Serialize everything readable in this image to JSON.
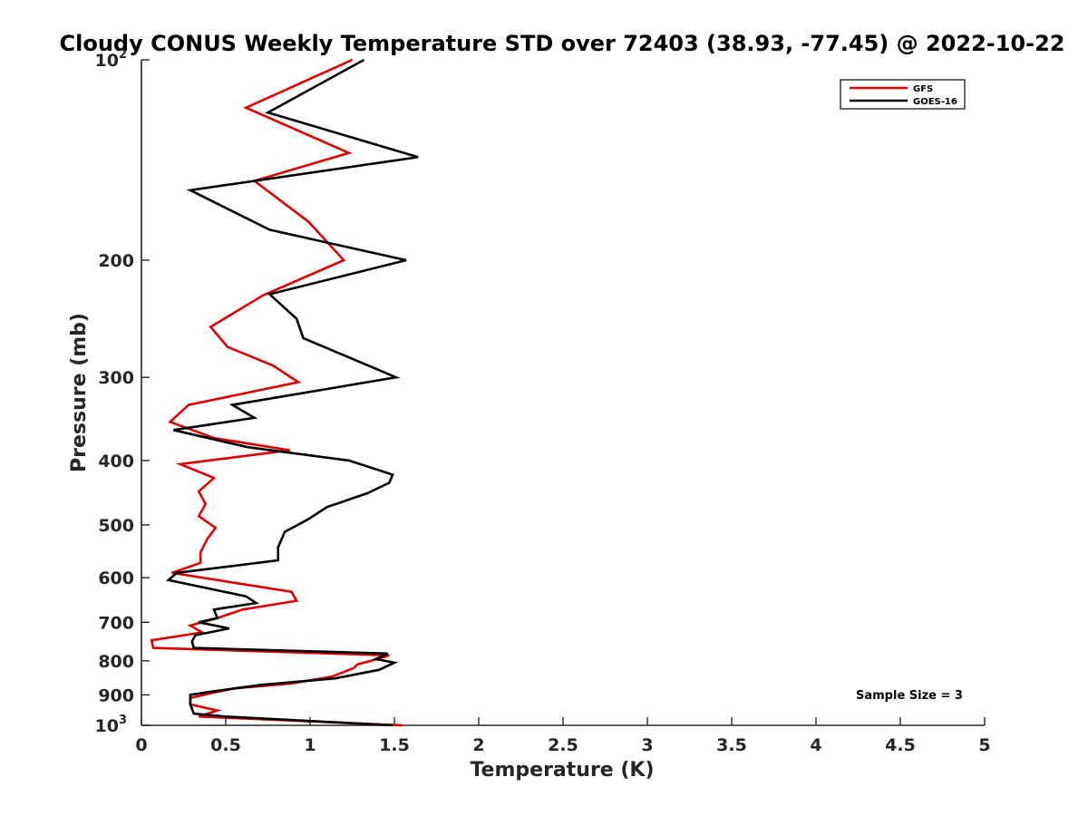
{
  "chart_data": {
    "type": "line",
    "title": "Cloudy CONUS Weekly Temperature STD over 72403 (38.93, -77.45) @ 2022-10-22",
    "xlabel": "Temperature (K)",
    "ylabel": "Pressure (mb)",
    "xlim": [
      0,
      5
    ],
    "ylim": [
      100,
      1000
    ],
    "y_scale": "log",
    "y_reversed": true,
    "x_ticks": [
      "0",
      "0.5",
      "1",
      "1.5",
      "2",
      "2.5",
      "3",
      "3.5",
      "4",
      "4.5",
      "5"
    ],
    "x_tick_values": [
      0,
      0.5,
      1,
      1.5,
      2,
      2.5,
      3,
      3.5,
      4,
      4.5,
      5
    ],
    "y_ticks": [
      {
        "value": 100,
        "base": "10",
        "exp": "2"
      },
      {
        "value": 200,
        "label": "200"
      },
      {
        "value": 300,
        "label": "300"
      },
      {
        "value": 400,
        "label": "400"
      },
      {
        "value": 500,
        "label": "500"
      },
      {
        "value": 600,
        "label": "600"
      },
      {
        "value": 700,
        "label": "700"
      },
      {
        "value": 800,
        "label": "800"
      },
      {
        "value": 900,
        "label": "900"
      },
      {
        "value": 1000,
        "base": "10",
        "exp": "3"
      }
    ],
    "grid": false,
    "legend_position": "top-right",
    "annotation": "Sample Size = 3",
    "series": [
      {
        "name": "GFS",
        "color": "#dd0000",
        "x": [
          1.25,
          0.62,
          1.23,
          0.67,
          0.99,
          1.2,
          0.72,
          0.41,
          0.51,
          0.78,
          0.93,
          0.28,
          0.17,
          0.43,
          0.88,
          0.23,
          0.43,
          0.34,
          0.38,
          0.34,
          0.44,
          0.39,
          0.35,
          0.35,
          0.18,
          0.89,
          0.92,
          0.6,
          0.45,
          0.29,
          0.36,
          0.06,
          0.07,
          1.47,
          1.36,
          1.28,
          1.26,
          1.13,
          0.89,
          0.55,
          0.41,
          0.29,
          0.29,
          0.45,
          0.34,
          1.55
        ],
        "y": [
          100,
          118,
          138,
          152,
          175,
          200,
          226,
          252,
          270,
          288,
          305,
          330,
          350,
          370,
          386,
          405,
          425,
          445,
          465,
          485,
          505,
          525,
          550,
          570,
          590,
          630,
          650,
          670,
          690,
          708,
          725,
          745,
          765,
          785,
          800,
          810,
          820,
          845,
          865,
          880,
          895,
          910,
          930,
          950,
          970,
          1000
        ]
      },
      {
        "name": "GOES-16",
        "color": "#000000",
        "x": [
          1.32,
          0.75,
          1.64,
          0.29,
          0.76,
          1.57,
          0.76,
          0.92,
          0.96,
          1.51,
          0.54,
          0.67,
          0.19,
          0.63,
          1.23,
          1.49,
          1.47,
          1.34,
          1.1,
          0.99,
          0.85,
          0.81,
          0.81,
          0.21,
          0.16,
          0.62,
          0.68,
          0.43,
          0.45,
          0.34,
          0.52,
          0.32,
          0.3,
          0.31,
          1.46,
          1.39,
          1.5,
          1.41,
          1.15,
          0.7,
          0.41,
          0.29,
          0.29,
          0.31,
          0.5,
          1.49
        ],
        "y": [
          100,
          120,
          140,
          157,
          180,
          200,
          225,
          245,
          262,
          300,
          330,
          345,
          360,
          382,
          400,
          420,
          432,
          448,
          470,
          490,
          512,
          540,
          565,
          590,
          605,
          640,
          655,
          670,
          690,
          700,
          715,
          732,
          748,
          765,
          780,
          795,
          805,
          825,
          850,
          870,
          890,
          900,
          930,
          960,
          970,
          1000
        ]
      }
    ]
  }
}
